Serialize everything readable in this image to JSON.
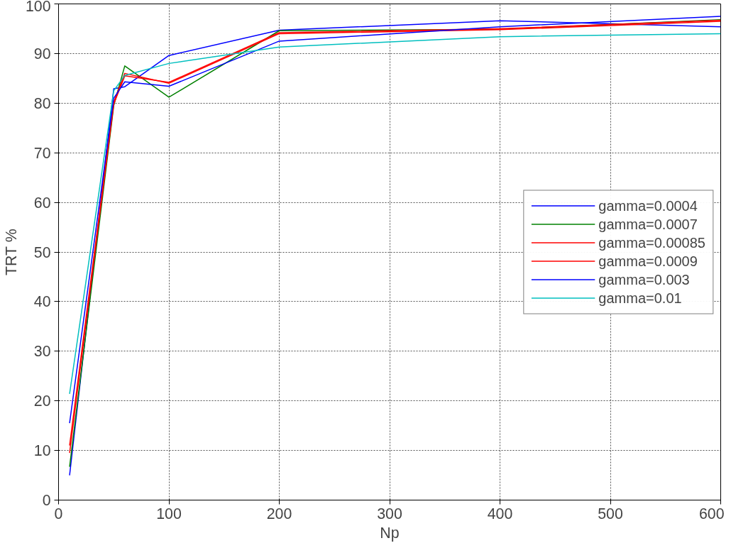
{
  "chart_data": {
    "type": "line",
    "xlabel": "Np",
    "ylabel": "TRT %",
    "xlim": [
      0,
      600
    ],
    "ylim": [
      0,
      100
    ],
    "xticks": [
      0,
      100,
      200,
      300,
      400,
      500,
      600
    ],
    "yticks": [
      0,
      10,
      20,
      30,
      40,
      50,
      60,
      70,
      80,
      90,
      100
    ],
    "grid": true,
    "legend": "right",
    "marker": "none",
    "line_style": "solid",
    "x": [
      10,
      50,
      60,
      100,
      200,
      400,
      600
    ],
    "series": [
      {
        "name": "gamma=0.0004",
        "color": "#0000ff",
        "values": [
          5,
          82.9,
          83.3,
          89.6,
          94.7,
          96.6,
          95.4
        ]
      },
      {
        "name": "gamma=0.0007",
        "color": "#008000",
        "values": [
          6.7,
          79.5,
          87.5,
          81.2,
          94.6,
          94.9,
          96.8
        ]
      },
      {
        "name": "gamma=0.00085",
        "color": "#ff0000",
        "values": [
          11,
          80.2,
          86,
          84,
          94,
          94.8,
          96.5
        ]
      },
      {
        "name": "gamma=0.0009",
        "color": "#ff0000",
        "values": [
          9.5,
          79.8,
          85.5,
          84.2,
          94.2,
          95,
          96.7
        ]
      },
      {
        "name": "gamma=0.003",
        "color": "#0000ff",
        "values": [
          15.5,
          81,
          84.3,
          83.4,
          92.5,
          95.4,
          97.5
        ]
      },
      {
        "name": "gamma=0.01",
        "color": "#00bfbf",
        "values": [
          21.4,
          82.5,
          85.6,
          88,
          91.3,
          93.4,
          94
        ]
      }
    ]
  }
}
